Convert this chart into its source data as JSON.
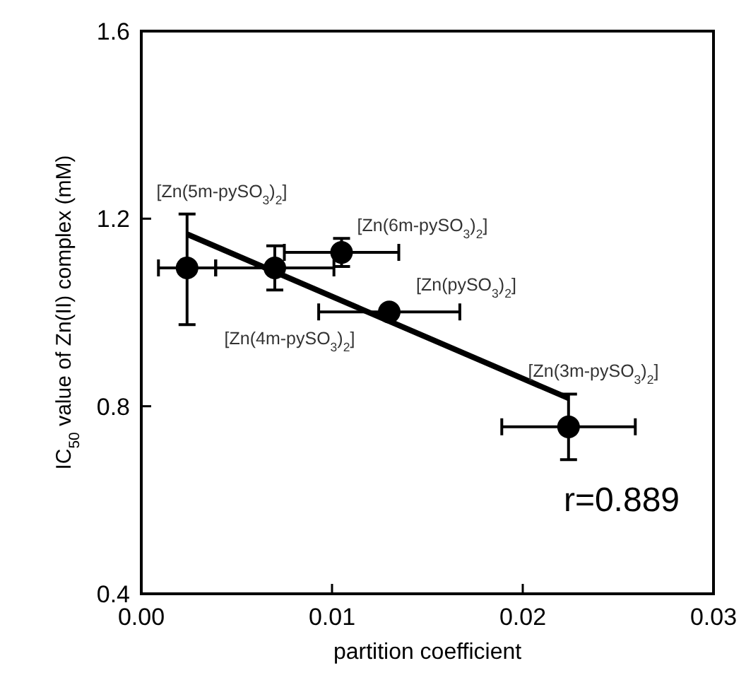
{
  "chart_data": {
    "type": "scatter",
    "xlabel": "partition coefficient",
    "ylabel": "IC$_{50}$ value of Zn(II) complex (mM)",
    "xlim": [
      0,
      0.03
    ],
    "ylim": [
      0.4,
      1.6
    ],
    "xticks": [
      {
        "value": 0,
        "label": "0.00"
      },
      {
        "value": 0.01,
        "label": "0.01"
      },
      {
        "value": 0.02,
        "label": "0.02"
      },
      {
        "value": 0.03,
        "label": "0.03"
      }
    ],
    "yticks": [
      0.4,
      0.8,
      1.2,
      1.6
    ],
    "grid": false,
    "series": [
      {
        "marker": "circle",
        "color": "#000000",
        "x": [
          0.0024,
          0.007,
          0.0105,
          0.013,
          0.0224
        ],
        "values": [
          1.095,
          1.095,
          1.128,
          1.001,
          0.756
        ],
        "errors": [
          [
            0.974,
            1.21
          ],
          0.047,
          0.03,
          null,
          0.07
        ],
        "xerrors": [
          0.0015,
          0.0031,
          0.003,
          0.0037,
          0.0035
        ]
      },
      {
        "type": "line",
        "color": "#000000",
        "x": [
          0.0024,
          0.0224
        ],
        "values": [
          1.167,
          0.817
        ]
      }
    ],
    "annotations": [
      "[Zn(5m-pySO$_{3}$)$_{2}$]",
      "[Zn(6m-pySO$_{3}$)$_{2}$]",
      "[Zn(pySO$_{3}$)$_{2}$]",
      "[Zn(4m-pySO$_{3}$)$_{2}$]",
      "[Zn(3m-pySO$_{3}$)$_{2}$]",
      "r=0.889"
    ]
  }
}
